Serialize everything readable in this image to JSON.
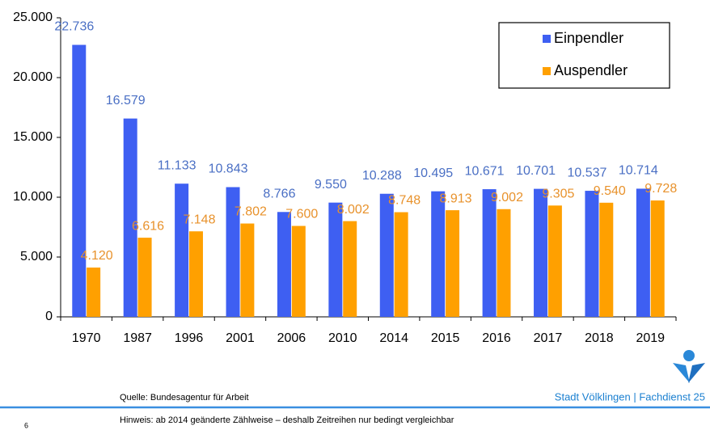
{
  "chart_data": {
    "type": "bar",
    "categories": [
      "1970",
      "1987",
      "1996",
      "2001",
      "2006",
      "2010",
      "2014",
      "2015",
      "2016",
      "2017",
      "2018",
      "2019"
    ],
    "series": [
      {
        "name": "Einpendler",
        "color": "#3e5ff2",
        "label_color": "#4a6fc4",
        "values": [
          22736,
          16579,
          11133,
          10843,
          8766,
          9550,
          10288,
          10495,
          10671,
          10701,
          10537,
          10714
        ],
        "value_labels": [
          "22.736",
          "16.579",
          "11.133",
          "10.843",
          "8.766",
          "9.550",
          "10.288",
          "10.495",
          "10.671",
          "10.701",
          "10.537",
          "10.714"
        ]
      },
      {
        "name": "Auspendler",
        "color": "#ffa000",
        "label_color": "#e8922c",
        "values": [
          4120,
          6616,
          7148,
          7802,
          7600,
          8002,
          8748,
          8913,
          9002,
          9305,
          9540,
          9728
        ],
        "value_labels": [
          "4.120",
          "6.616",
          "7.148",
          "7.802",
          "7.600",
          "8.002",
          "8.748",
          "8.913",
          "9.002",
          "9.305",
          "9.540",
          "9.728"
        ]
      }
    ],
    "ylim": [
      0,
      25000
    ],
    "yticks": [
      0,
      {
        "value": 5000,
        "label": "5.000"
      },
      {
        "value": 10000,
        "label": "10.000"
      },
      {
        "value": 15000,
        "label": "15.000"
      },
      {
        "value": 20000,
        "label": "20.000"
      },
      {
        "value": 25000,
        "label": "25.000"
      }
    ],
    "grid": false,
    "legend": "top-right"
  },
  "footer": {
    "source": "Quelle: Bundesagentur für Arbeit",
    "publisher": "Stadt Völklingen | Fachdienst 25",
    "note": "Hinweis: ab 2014 geänderte Zählweise – deshalb Zeitreihen nur bedingt vergleichbar",
    "page": "6"
  }
}
